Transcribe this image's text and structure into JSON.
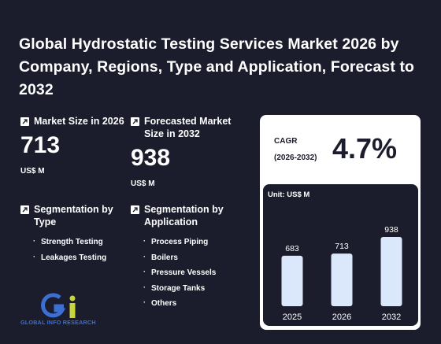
{
  "title": "Global Hydrostatic Testing Services Market 2026 by Company, Regions, Type and Application, Forecast to 2032",
  "market_size": {
    "label": "Market Size in 2026",
    "value": "713",
    "unit": "US$ M"
  },
  "forecast": {
    "label": "Forecasted Market Size in 2032",
    "value": "938",
    "unit": "US$ M"
  },
  "segment_type": {
    "label": "Segmentation by Type",
    "items": [
      "Strength Testing",
      "Leakages Testing"
    ]
  },
  "segment_app": {
    "label": "Segmentation by Application",
    "items": [
      "Process Piping",
      "Boilers",
      "Pressure Vessels",
      "Storage Tanks",
      "Others"
    ]
  },
  "logo": {
    "text": "GLOBAL INFO RESEARCH"
  },
  "cagr": {
    "label": "CAGR",
    "period": "(2026-2032)",
    "value": "4.7%"
  },
  "chart_data": {
    "type": "bar",
    "unit_label": "Unit: US$ M",
    "categories": [
      "2025",
      "2026",
      "2032"
    ],
    "values": [
      683,
      713,
      938
    ],
    "bar_color": "#dbe8fb"
  },
  "colors": {
    "background": "#1b1c2c",
    "panel": "#ffffff",
    "accent": "#3b6fd3"
  }
}
